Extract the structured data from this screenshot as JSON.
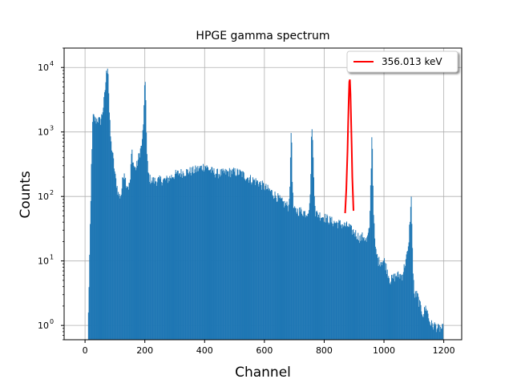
{
  "chart_data": {
    "type": "bar",
    "title": "HPGE gamma spectrum",
    "xlabel": "Channel",
    "ylabel": "Counts",
    "xlim": [
      -70,
      1260
    ],
    "ylim": [
      0.6,
      20000
    ],
    "yscale": "log",
    "grid": true,
    "bar_color": "#1f77b4",
    "fit_color": "#ff0000",
    "legend": {
      "placement": "top-right",
      "entries": [
        {
          "name": "356.013 keV",
          "color": "#ff0000"
        }
      ]
    },
    "xticks": [
      0,
      200,
      400,
      600,
      800,
      1000,
      1200
    ],
    "xtick_labels": [
      "0",
      "200",
      "400",
      "600",
      "800",
      "1000",
      "1200"
    ],
    "yticks": [
      1,
      10,
      100,
      1000,
      10000
    ],
    "ytick_labels": [
      "10",
      "10",
      "10",
      "10",
      "10"
    ],
    "ytick_exponents": [
      "0",
      "1",
      "2",
      "3",
      "4"
    ],
    "spectrum": {
      "channels": [
        10,
        15,
        18,
        20,
        25,
        30,
        35,
        40,
        45,
        50,
        55,
        60,
        65,
        70,
        73,
        75,
        77,
        80,
        85,
        90,
        95,
        100,
        105,
        110,
        115,
        120,
        125,
        130,
        135,
        140,
        145,
        150,
        155,
        160,
        165,
        170,
        175,
        180,
        185,
        190,
        195,
        198,
        200,
        202,
        205,
        210,
        215,
        220,
        230,
        250,
        270,
        300,
        330,
        360,
        380,
        400,
        420,
        440,
        460,
        480,
        500,
        520,
        540,
        560,
        580,
        600,
        620,
        640,
        660,
        680,
        685,
        688,
        690,
        692,
        695,
        700,
        720,
        740,
        750,
        755,
        757,
        760,
        765,
        770,
        790,
        810,
        830,
        850,
        870,
        880,
        890,
        900,
        910,
        920,
        930,
        940,
        950,
        955,
        958,
        960,
        962,
        965,
        970,
        980,
        1000,
        1020,
        1040,
        1060,
        1080,
        1085,
        1090,
        1093,
        1095,
        1100,
        1110,
        1120,
        1130,
        1140,
        1150,
        1160,
        1170,
        1180,
        1190,
        1197
      ],
      "counts": [
        1.5,
        20,
        80,
        300,
        1800,
        1600,
        1500,
        1600,
        1500,
        1500,
        1800,
        2500,
        4000,
        8000,
        10000,
        12000,
        6000,
        2000,
        700,
        500,
        320,
        200,
        150,
        110,
        100,
        110,
        190,
        250,
        170,
        150,
        140,
        180,
        550,
        330,
        270,
        280,
        350,
        450,
        550,
        700,
        1700,
        4500,
        6000,
        3500,
        500,
        230,
        190,
        180,
        175,
        180,
        180,
        220,
        240,
        250,
        270,
        300,
        250,
        230,
        230,
        240,
        240,
        230,
        200,
        180,
        165,
        140,
        120,
        100,
        80,
        70,
        200,
        1000,
        700,
        200,
        70,
        60,
        60,
        55,
        70,
        300,
        1800,
        700,
        150,
        55,
        50,
        45,
        40,
        38,
        35,
        35,
        30,
        28,
        25,
        22,
        25,
        20,
        30,
        200,
        800,
        600,
        150,
        40,
        15,
        10,
        10,
        5,
        6,
        6,
        15,
        40,
        90,
        30,
        8,
        3,
        3,
        2,
        1.5,
        2,
        1.2,
        1,
        1,
        0.9,
        0.9,
        0.9
      ]
    },
    "fit": {
      "name": "356.013 keV",
      "x": [
        870,
        874,
        878,
        880,
        882,
        884,
        886,
        888,
        890,
        892,
        894,
        898
      ],
      "y": [
        55,
        130,
        500,
        1300,
        3000,
        6000,
        6500,
        3800,
        1500,
        600,
        200,
        60
      ]
    }
  }
}
